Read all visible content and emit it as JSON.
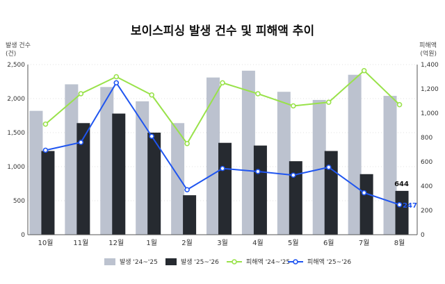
{
  "chart_data": {
    "type": "bar",
    "title": "보이스피싱 발생 건수 및 피해액 추이",
    "left_axis": {
      "label_line1": "발생 건수",
      "label_line2": "(건)",
      "ylim": [
        0,
        2500
      ],
      "ticks": [
        0,
        500,
        1000,
        1500,
        2000,
        2500
      ],
      "tick_labels": [
        "0",
        "500",
        "1,000",
        "1,500",
        "2,000",
        "2,500"
      ]
    },
    "right_axis": {
      "label_line1": "피해액",
      "label_line2": "(억원)",
      "ylim": [
        0,
        1400
      ],
      "ticks": [
        0,
        200,
        400,
        600,
        800,
        1000,
        1200,
        1400
      ],
      "tick_labels": [
        "0",
        "200",
        "400",
        "600",
        "800",
        "1,000",
        "1,200",
        "1,400"
      ]
    },
    "categories": [
      "10월",
      "11월",
      "12월",
      "1월",
      "2월",
      "3월",
      "4월",
      "5월",
      "6월",
      "7월",
      "8월"
    ],
    "bar_series": [
      {
        "name": "발생 '24~'25",
        "color": "#bcc2cf",
        "values": [
          1820,
          2210,
          2170,
          1960,
          1640,
          2310,
          2410,
          2100,
          1980,
          2350,
          2040
        ]
      },
      {
        "name": "발생 '25~'26",
        "color": "#262a30",
        "values": [
          1230,
          1640,
          1780,
          1500,
          580,
          1350,
          1310,
          1080,
          1230,
          890,
          644
        ]
      }
    ],
    "line_series": [
      {
        "name": "피해액 '24~'25",
        "color": "#99e24a",
        "values": [
          910,
          1160,
          1300,
          1150,
          750,
          1250,
          1160,
          1060,
          1090,
          1350,
          1070
        ]
      },
      {
        "name": "피해액 '25~'26",
        "color": "#1f55f0",
        "values": [
          695,
          760,
          1250,
          810,
          370,
          545,
          520,
          490,
          555,
          345,
          247
        ]
      }
    ],
    "data_labels": [
      {
        "text": "644",
        "color": "#111111"
      },
      {
        "text": "247",
        "color": "#1f55f0"
      }
    ],
    "legend_position": "bottom"
  }
}
